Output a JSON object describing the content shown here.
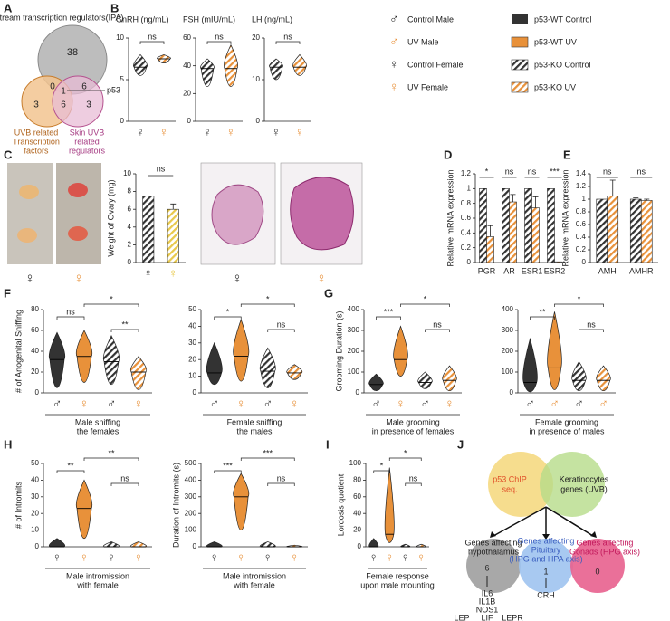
{
  "panels": [
    "A",
    "B",
    "C",
    "D",
    "E",
    "F",
    "G",
    "H",
    "I",
    "J"
  ],
  "venn": {
    "top": "Upstream transcription regulators(IPA)",
    "n_top": "38",
    "n_left": "3",
    "n_right": "3",
    "n_tl": "0",
    "n_tr": "6",
    "n_center": "1",
    "n_bottom": "6",
    "marker": "p53",
    "left": [
      "UVB related",
      "Transcription",
      "factors"
    ],
    "right": [
      "Skin UVB",
      "related",
      "regulators"
    ]
  },
  "legend": {
    "sex": [
      {
        "symbol": "♂",
        "label": "Control Male"
      },
      {
        "symbol": "♂",
        "label": "UV Male"
      },
      {
        "symbol": "♀",
        "label": "Control Female"
      },
      {
        "symbol": "♀",
        "label": "UV Female"
      }
    ],
    "groups": [
      "p53-WT Control",
      "p53-WT UV",
      "p53-KO Control",
      "p53-KO UV"
    ]
  },
  "photos": {
    "symbols": [
      "♀",
      "♀"
    ]
  },
  "histology": {
    "symbols": [
      "♀",
      "♀"
    ]
  },
  "diagram": {
    "chip": [
      "p53 ChIP",
      "seq."
    ],
    "kera": [
      "Keratinocytes",
      "genes (UVB)"
    ],
    "hypo": [
      "Genes affecting",
      "hypothalamus"
    ],
    "pit": [
      "Genes affecting",
      "Pituitary",
      "(HPG and HPA axis)"
    ],
    "gon": [
      "Genes affecting",
      "Gonads (HPG axis)"
    ],
    "n_hypo": "6",
    "n_pit": "1",
    "n_gon": "0",
    "hypo_genes": [
      "IL6",
      "IL1B",
      "NOS1",
      "LIF",
      "LEP",
      "LEPR"
    ],
    "pit_genes": [
      "CRH"
    ]
  },
  "chart_data": [
    {
      "type": "violin",
      "title": "GnRH (ng/mL)",
      "categories": [
        "♀",
        "♀"
      ],
      "colors": [
        "#333333",
        "#e8913a"
      ],
      "hatched": [
        true,
        true
      ],
      "min": [
        5.5,
        7
      ],
      "median": [
        6.5,
        7.5
      ],
      "max": [
        8,
        8
      ],
      "ylim": [
        0,
        10
      ],
      "yticks": [
        0,
        5,
        10
      ],
      "annotations": [
        "ns"
      ]
    },
    {
      "type": "violin",
      "title": "FSH (mIU/mL)",
      "categories": [
        "♀",
        "♀"
      ],
      "colors": [
        "#333333",
        "#e8913a"
      ],
      "hatched": [
        true,
        true
      ],
      "min": [
        25,
        25
      ],
      "median": [
        38,
        38
      ],
      "max": [
        45,
        55
      ],
      "ylim": [
        0,
        60
      ],
      "yticks": [
        0,
        20,
        40,
        60
      ],
      "annotations": [
        "ns"
      ]
    },
    {
      "type": "violin",
      "title": "LH (ng/mL)",
      "categories": [
        "♀",
        "♀"
      ],
      "colors": [
        "#333333",
        "#e8913a"
      ],
      "hatched": [
        true,
        true
      ],
      "min": [
        10,
        11
      ],
      "median": [
        13,
        13
      ],
      "max": [
        15,
        16
      ],
      "ylim": [
        0,
        20
      ],
      "yticks": [
        0,
        10,
        20
      ],
      "annotations": [
        "ns"
      ]
    },
    {
      "type": "bar",
      "ylabel": "Weight of Ovary (mg)",
      "categories": [
        "♀",
        "♀"
      ],
      "values": [
        7.5,
        6
      ],
      "errors": [
        0,
        0.6
      ],
      "colors": [
        "#333333",
        "#e8c84a"
      ],
      "hatched": [
        true,
        true
      ],
      "ylim": [
        0,
        10
      ],
      "yticks": [
        0,
        2,
        4,
        6,
        8,
        10
      ],
      "annotations": [
        "ns"
      ]
    },
    {
      "type": "bar",
      "ylabel": "Relative mRNA expression",
      "categories": [
        "PGR",
        "AR",
        "ESR1",
        "ESR2"
      ],
      "series": [
        {
          "color": "#333333",
          "hatched": true,
          "values": [
            1,
            1,
            1,
            1
          ],
          "errors": [
            0,
            0,
            0,
            0
          ]
        },
        {
          "color": "#e8913a",
          "hatched": true,
          "values": [
            0.35,
            0.82,
            0.74,
            0.01
          ],
          "errors": [
            0.15,
            0.1,
            0.15,
            0
          ]
        }
      ],
      "ylim": [
        0,
        1.2
      ],
      "yticks": [
        0,
        0.2,
        0.4,
        0.6,
        0.8,
        1,
        1.2
      ],
      "annotations": [
        "*",
        "ns",
        "ns",
        "***"
      ]
    },
    {
      "type": "bar",
      "ylabel": "Relative mRNA expression",
      "categories": [
        "AMH",
        "AMHR"
      ],
      "series": [
        {
          "color": "#333333",
          "hatched": true,
          "values": [
            1,
            1
          ],
          "errors": [
            0,
            0.02
          ]
        },
        {
          "color": "#e8913a",
          "hatched": true,
          "values": [
            1.05,
            0.98
          ],
          "errors": [
            0.25,
            0.02
          ]
        }
      ],
      "ylim": [
        0,
        1.4
      ],
      "yticks": [
        0,
        0.2,
        0.4,
        0.6,
        0.8,
        1,
        1.2,
        1.4
      ],
      "annotations": [
        "ns",
        "ns"
      ]
    },
    {
      "type": "violin",
      "ylabel": "# of Anogenital Sniffing",
      "xlabel": [
        "Male sniffing",
        "the females"
      ],
      "categories": [
        "♂",
        "♀",
        "♂",
        "♀"
      ],
      "colors": [
        "#333333",
        "#e8913a",
        "#333333",
        "#e8913a"
      ],
      "hatched": [
        false,
        false,
        true,
        true
      ],
      "min": [
        5,
        10,
        8,
        3
      ],
      "median": [
        32,
        35,
        30,
        20
      ],
      "max": [
        58,
        60,
        55,
        35
      ],
      "ylim": [
        0,
        80
      ],
      "yticks": [
        0,
        20,
        40,
        60,
        80
      ],
      "annotations": [
        "ns",
        "*",
        "**"
      ]
    },
    {
      "type": "violin",
      "xlabel": [
        "Female sniffing",
        "the males"
      ],
      "categories": [
        "♂",
        "♀",
        "♂",
        "♀"
      ],
      "colors": [
        "#333333",
        "#e8913a",
        "#333333",
        "#e8913a"
      ],
      "hatched": [
        false,
        false,
        true,
        true
      ],
      "min": [
        5,
        7,
        3,
        8
      ],
      "median": [
        12,
        22,
        13,
        12
      ],
      "max": [
        30,
        44,
        27,
        17
      ],
      "ylim": [
        0,
        50
      ],
      "yticks": [
        0,
        10,
        20,
        30,
        40,
        50
      ],
      "annotations": [
        "*",
        "*",
        "ns"
      ]
    },
    {
      "type": "violin",
      "ylabel": "Grooming Duration (s)",
      "xlabel": [
        "Male grooming",
        "in presence of females"
      ],
      "categories": [
        "♂",
        "♀",
        "♂",
        "♀"
      ],
      "colors": [
        "#333333",
        "#e8913a",
        "#333333",
        "#e8913a"
      ],
      "hatched": [
        false,
        false,
        true,
        true
      ],
      "min": [
        10,
        80,
        20,
        10
      ],
      "median": [
        40,
        160,
        50,
        60
      ],
      "max": [
        90,
        320,
        100,
        130
      ],
      "ylim": [
        0,
        400
      ],
      "yticks": [
        0,
        100,
        200,
        300,
        400
      ],
      "annotations": [
        "***",
        "*",
        "ns"
      ]
    },
    {
      "type": "violin",
      "xlabel": [
        "Female grooming",
        "in presence of males"
      ],
      "categories": [
        "♂",
        "♂",
        "♂",
        "♂"
      ],
      "colors": [
        "#333333",
        "#e8913a",
        "#333333",
        "#e8913a"
      ],
      "hatched": [
        false,
        false,
        true,
        true
      ],
      "min": [
        5,
        15,
        10,
        10
      ],
      "median": [
        50,
        120,
        60,
        60
      ],
      "max": [
        260,
        390,
        150,
        130
      ],
      "ylim": [
        0,
        400
      ],
      "yticks": [
        0,
        100,
        200,
        300,
        400
      ],
      "annotations": [
        "**",
        "*",
        "ns"
      ]
    },
    {
      "type": "violin",
      "ylabel": "# of Intromits",
      "xlabel": [
        "Male intromission",
        "with female"
      ],
      "categories": [
        "♀",
        "♀",
        "♀",
        "♀"
      ],
      "colors": [
        "#333333",
        "#e8913a",
        "#333333",
        "#e8913a"
      ],
      "hatched": [
        false,
        false,
        true,
        true
      ],
      "min": [
        0,
        5,
        0,
        0
      ],
      "median": [
        0,
        23,
        0,
        0
      ],
      "max": [
        5,
        40,
        3,
        3
      ],
      "ylim": [
        0,
        50
      ],
      "yticks": [
        0,
        10,
        20,
        30,
        40,
        50
      ],
      "annotations": [
        "**",
        "**",
        "ns"
      ]
    },
    {
      "type": "violin",
      "ylabel": "Duration of Intromits (s)",
      "xlabel": [
        "Male intromission",
        "with female"
      ],
      "categories": [
        "♀",
        "♀",
        "♀",
        "♀"
      ],
      "colors": [
        "#333333",
        "#e8913a",
        "#333333",
        "#e8913a"
      ],
      "hatched": [
        false,
        false,
        true,
        true
      ],
      "min": [
        0,
        100,
        0,
        0
      ],
      "median": [
        0,
        300,
        0,
        0
      ],
      "max": [
        30,
        440,
        30,
        10
      ],
      "ylim": [
        0,
        500
      ],
      "yticks": [
        0,
        100,
        200,
        300,
        400,
        500
      ],
      "annotations": [
        "***",
        "***",
        "ns"
      ]
    },
    {
      "type": "violin",
      "ylabel": "Lordosis quotient",
      "xlabel": [
        "Female response",
        "upon male mounting"
      ],
      "categories": [
        "♀",
        "♀",
        "♀",
        "♀"
      ],
      "colors": [
        "#333333",
        "#e8913a",
        "#333333",
        "#e8913a"
      ],
      "hatched": [
        false,
        false,
        true,
        true
      ],
      "min": [
        0,
        5,
        0,
        0
      ],
      "median": [
        0,
        15,
        0,
        0
      ],
      "max": [
        10,
        95,
        3,
        3
      ],
      "ylim": [
        0,
        100
      ],
      "yticks": [
        0,
        20,
        40,
        60,
        80,
        100
      ],
      "annotations": [
        "*",
        "*",
        "ns"
      ]
    }
  ]
}
